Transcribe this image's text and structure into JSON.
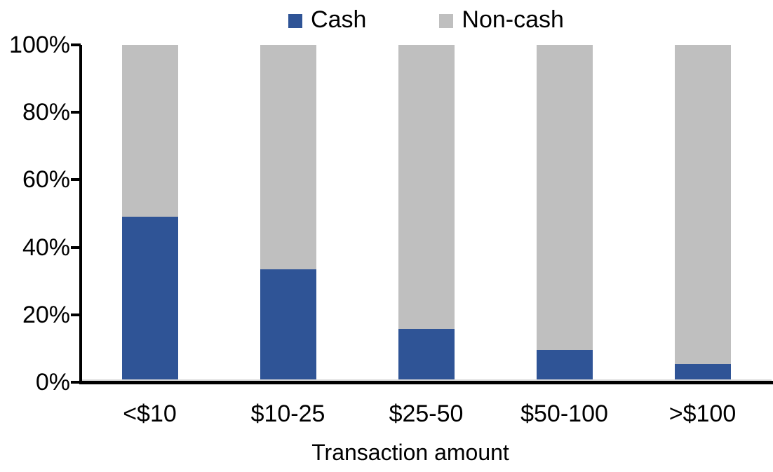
{
  "chart_data": {
    "type": "bar",
    "stacked": true,
    "title": "",
    "xlabel": "Transaction amount",
    "ylabel": "",
    "categories": [
      "<$10",
      "$10-25",
      "$25-50",
      "$50-100",
      ">$100"
    ],
    "series": [
      {
        "name": "Cash",
        "color": "#2F5496",
        "values": [
          49,
          33.5,
          15.8,
          9.6,
          5.5
        ]
      },
      {
        "name": "Non-cash",
        "color": "#BFBFBF",
        "values": [
          51,
          66.5,
          84.2,
          90.4,
          94.5
        ]
      }
    ],
    "yticks": [
      "0%",
      "20%",
      "40%",
      "60%",
      "80%",
      "100%"
    ],
    "ytick_values": [
      0,
      20,
      40,
      60,
      80,
      100
    ],
    "ylim": [
      0,
      100
    ],
    "grid": false,
    "legend_position": "top-center",
    "axis_color": "#000000",
    "zero_gridline_color": "#D9D9D9",
    "background_color": "#FFFFFF"
  }
}
